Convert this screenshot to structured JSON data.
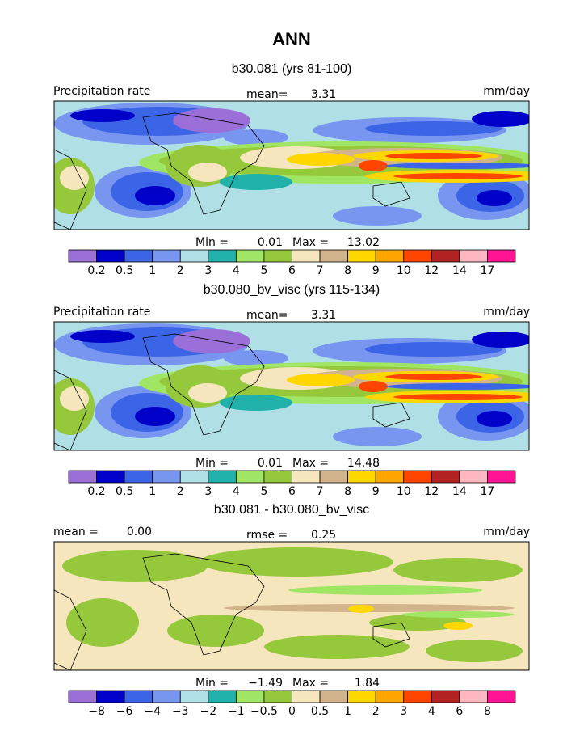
{
  "title": "ANN",
  "panels": [
    {
      "subtitle": "b30.081 (yrs 81-100)",
      "left_label": "Precipitation rate",
      "center_label": "mean=",
      "center_value": "3.31",
      "units": "mm/day",
      "stats": {
        "min_label": "Min =",
        "min": "0.01",
        "max_label": "Max =",
        "max": "13.02"
      },
      "colorbar": {
        "colors": [
          "#9a6fd8",
          "#0000c8",
          "#3c64e6",
          "#7896f0",
          "#b0e0e6",
          "#20b2aa",
          "#a0e664",
          "#96c83c",
          "#f5e6be",
          "#d2b48c",
          "#ffd700",
          "#ffa500",
          "#ff4500",
          "#b22222",
          "#ffb6c1",
          "#ff1493"
        ],
        "labels": [
          "0.2",
          "0.5",
          "1",
          "2",
          "3",
          "4",
          "5",
          "6",
          "7",
          "8",
          "9",
          "10",
          "12",
          "14",
          "17"
        ]
      }
    },
    {
      "subtitle": "b30.080_bv_visc (yrs 115-134)",
      "left_label": "Precipitation rate",
      "center_label": "mean=",
      "center_value": "3.31",
      "units": "mm/day",
      "stats": {
        "min_label": "Min =",
        "min": "0.01",
        "max_label": "Max =",
        "max": "14.48"
      },
      "colorbar": {
        "colors": [
          "#9a6fd8",
          "#0000c8",
          "#3c64e6",
          "#7896f0",
          "#b0e0e6",
          "#20b2aa",
          "#a0e664",
          "#96c83c",
          "#f5e6be",
          "#d2b48c",
          "#ffd700",
          "#ffa500",
          "#ff4500",
          "#b22222",
          "#ffb6c1",
          "#ff1493"
        ],
        "labels": [
          "0.2",
          "0.5",
          "1",
          "2",
          "3",
          "4",
          "5",
          "6",
          "7",
          "8",
          "9",
          "10",
          "12",
          "14",
          "17"
        ]
      }
    },
    {
      "subtitle": "b30.081 - b30.080_bv_visc",
      "left_label": "mean =",
      "left_value": "0.00",
      "center_label": "rmse =",
      "center_value": "0.25",
      "units": "mm/day",
      "stats": {
        "min_label": "Min =",
        "min": "−1.49",
        "max_label": "Max =",
        "max": "1.84"
      },
      "colorbar": {
        "colors": [
          "#9a6fd8",
          "#0000c8",
          "#3c64e6",
          "#7896f0",
          "#b0e0e6",
          "#20b2aa",
          "#a0e664",
          "#96c83c",
          "#f5e6be",
          "#d2b48c",
          "#ffd700",
          "#ffa500",
          "#ff4500",
          "#b22222",
          "#ffb6c1",
          "#ff1493"
        ],
        "labels": [
          "−8",
          "−6",
          "−4",
          "−3",
          "−2",
          "−1",
          "−0.5",
          "0",
          "0.5",
          "1",
          "2",
          "3",
          "4",
          "6",
          "8"
        ]
      }
    }
  ]
}
